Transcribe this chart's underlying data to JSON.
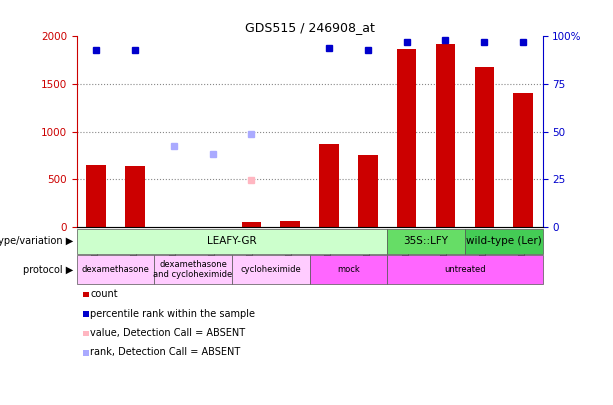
{
  "title": "GDS515 / 246908_at",
  "samples": [
    "GSM13778",
    "GSM13782",
    "GSM13779",
    "GSM13783",
    "GSM13780",
    "GSM13784",
    "GSM13781",
    "GSM13785",
    "GSM13789",
    "GSM13792",
    "GSM13791",
    "GSM13793"
  ],
  "count_values": [
    650,
    640,
    null,
    null,
    50,
    60,
    870,
    750,
    1870,
    1920,
    1680,
    1410
  ],
  "percentile_values": [
    93,
    93,
    null,
    null,
    null,
    null,
    94,
    93,
    97,
    98,
    97,
    97
  ],
  "value_absent": [
    null,
    null,
    null,
    null,
    490,
    null,
    null,
    null,
    null,
    null,
    null,
    null
  ],
  "rank_absent": [
    null,
    null,
    850,
    760,
    980,
    null,
    null,
    null,
    null,
    null,
    null,
    null
  ],
  "ylim_left": [
    0,
    2000
  ],
  "ylim_right": [
    0,
    100
  ],
  "yticks_left": [
    0,
    500,
    1000,
    1500,
    2000
  ],
  "yticks_right": [
    0,
    25,
    50,
    75,
    100
  ],
  "left_color": "#cc0000",
  "right_color": "#0000cc",
  "bar_color": "#cc0000",
  "dot_blue": "#0000cc",
  "dot_pink": "#ffb6c1",
  "dot_lightblue": "#aaaaff",
  "grid_color": "#888888",
  "genotype_row": [
    {
      "label": "LEAFY-GR",
      "start": 0,
      "end": 8,
      "color": "#ccffcc"
    },
    {
      "label": "35S::LFY",
      "start": 8,
      "end": 10,
      "color": "#66dd66"
    },
    {
      "label": "wild-type (Ler)",
      "start": 10,
      "end": 12,
      "color": "#44cc55"
    }
  ],
  "protocol_row": [
    {
      "label": "dexamethasone",
      "start": 0,
      "end": 2,
      "color": "#ffccff"
    },
    {
      "label": "dexamethasone\nand cycloheximide",
      "start": 2,
      "end": 4,
      "color": "#ffccff"
    },
    {
      "label": "cycloheximide",
      "start": 4,
      "end": 6,
      "color": "#ffccff"
    },
    {
      "label": "mock",
      "start": 6,
      "end": 8,
      "color": "#ff66ff"
    },
    {
      "label": "untreated",
      "start": 8,
      "end": 12,
      "color": "#ff66ff"
    }
  ],
  "legend_items": [
    {
      "label": "count",
      "color": "#cc0000"
    },
    {
      "label": "percentile rank within the sample",
      "color": "#0000cc"
    },
    {
      "label": "value, Detection Call = ABSENT",
      "color": "#ffb6c1"
    },
    {
      "label": "rank, Detection Call = ABSENT",
      "color": "#aaaaff"
    }
  ]
}
